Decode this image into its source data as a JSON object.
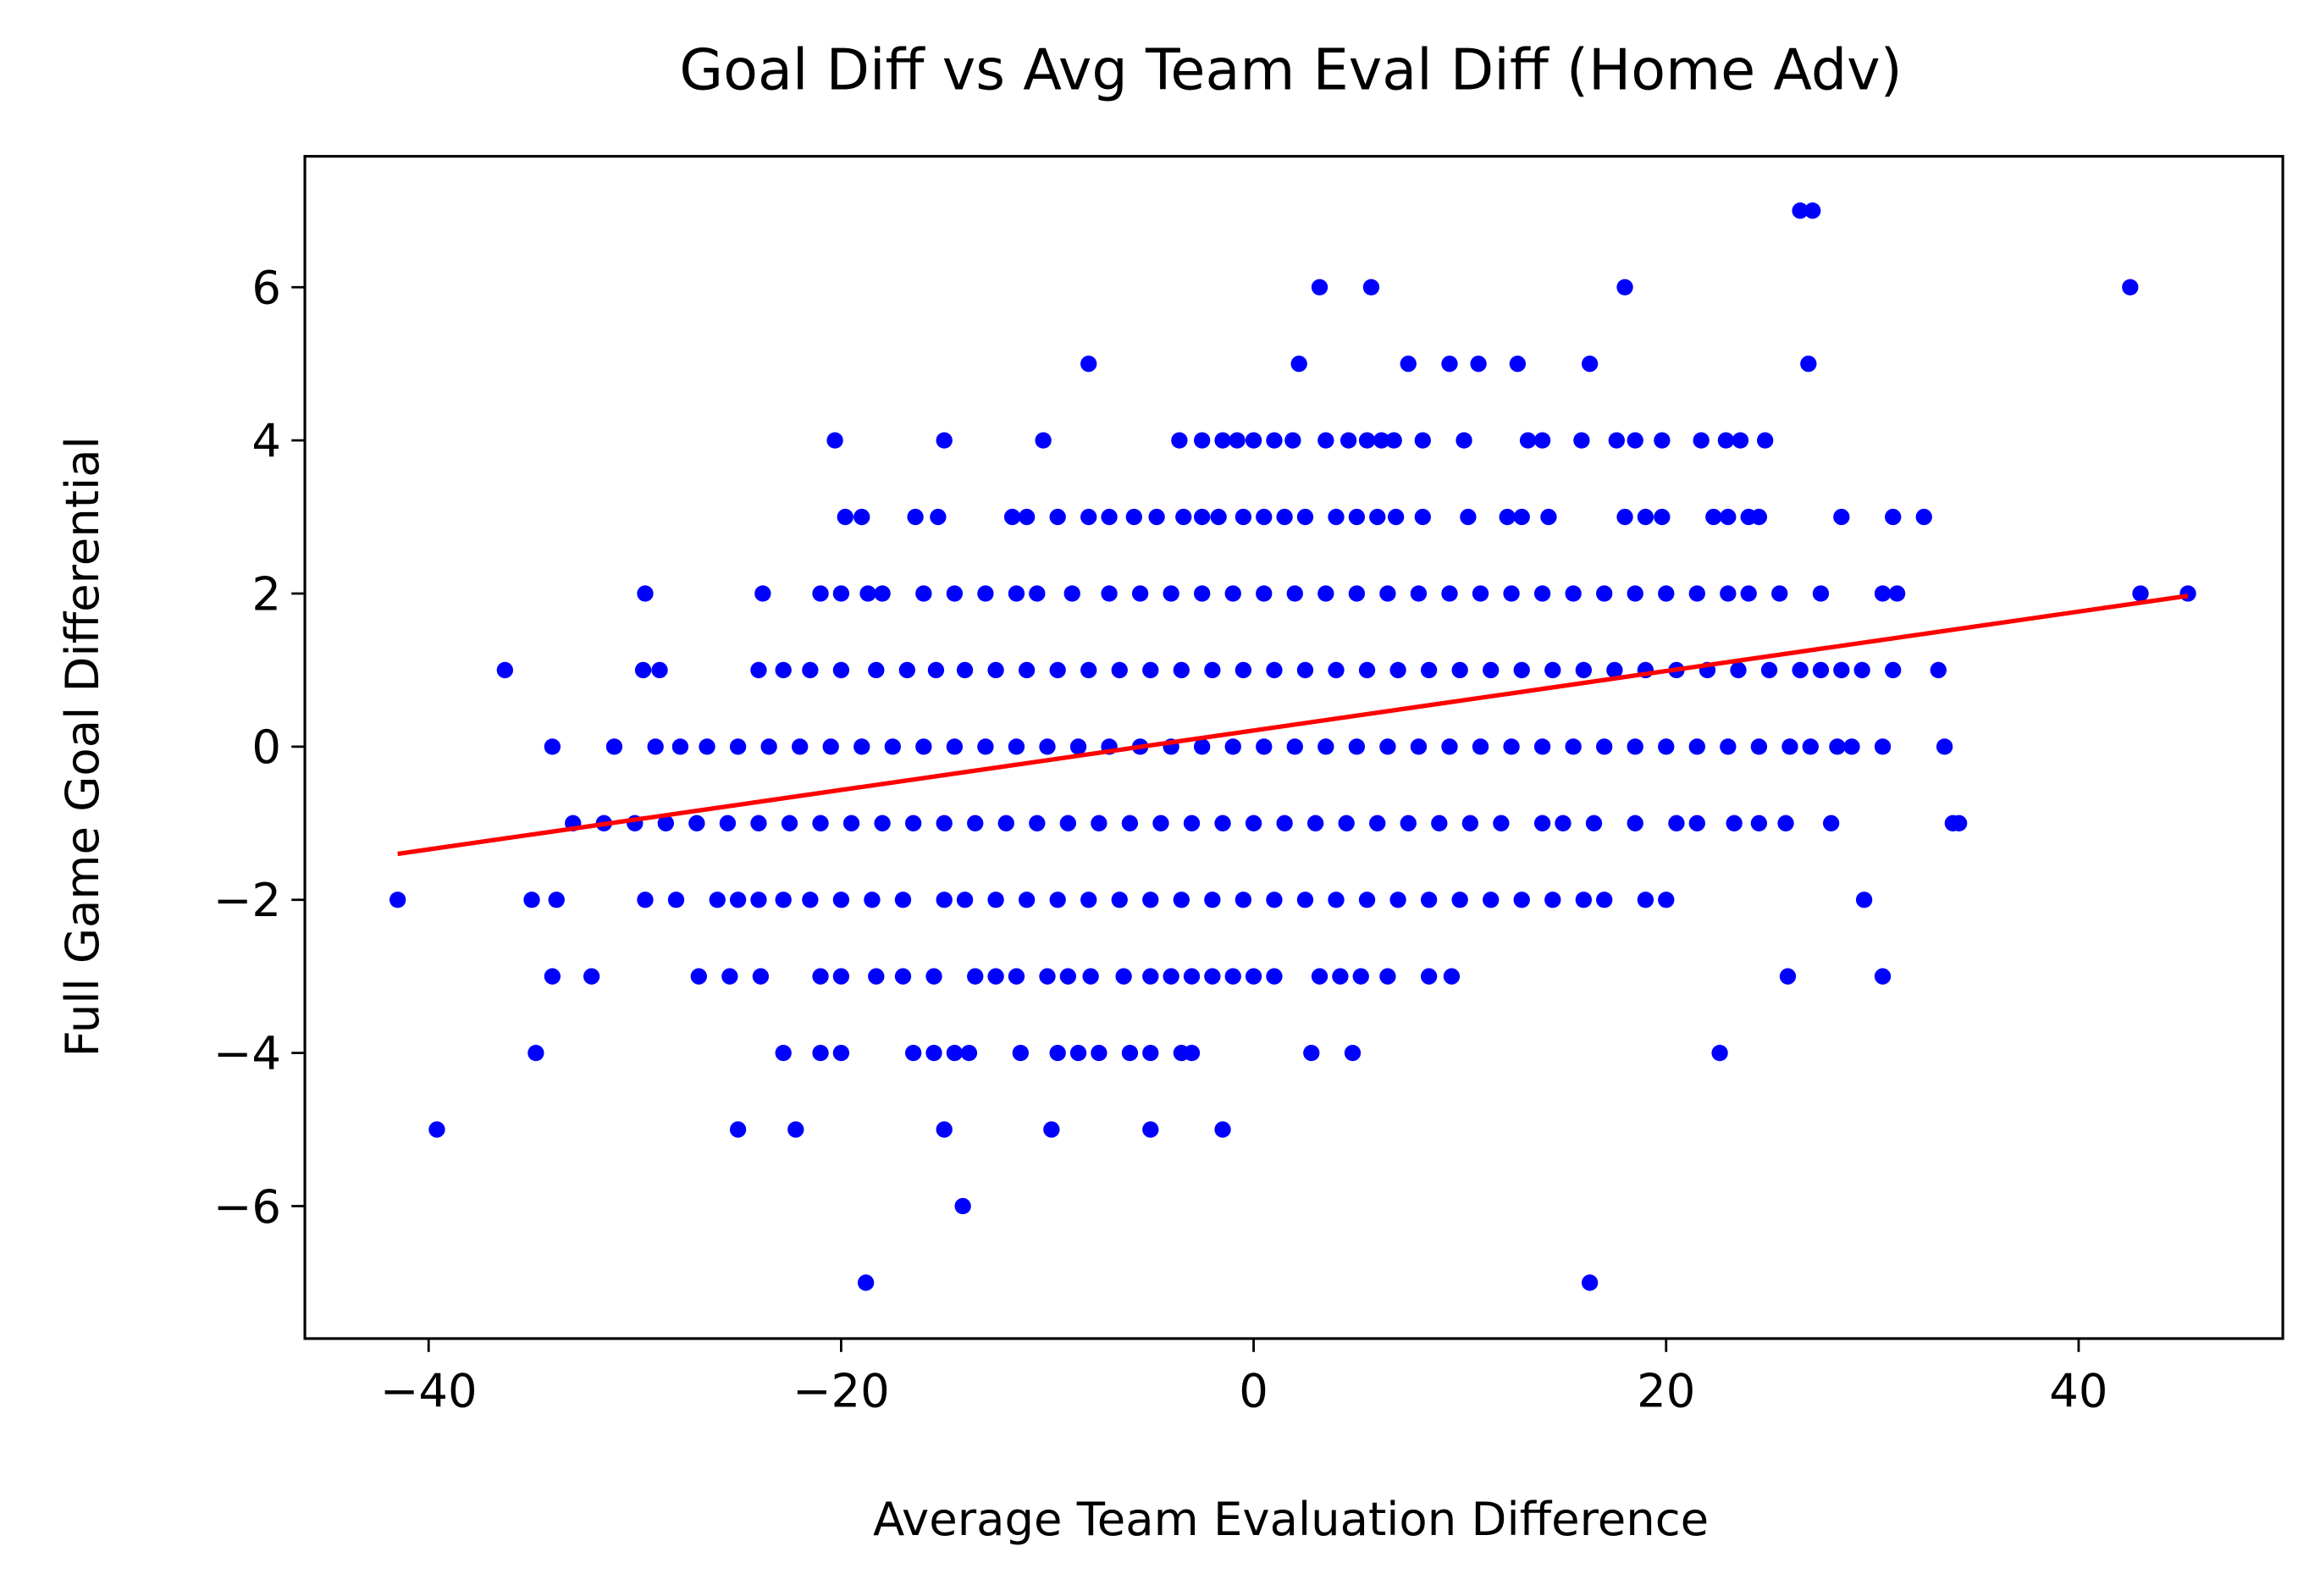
{
  "chart_data": {
    "type": "scatter",
    "title": "Goal Diff vs Avg Team Eval Diff (Home Adv)",
    "x_label": "Average Team Evaluation Difference",
    "y_label": "Full Game Goal Differential",
    "xlim": [
      -46,
      49.9
    ],
    "ylim": [
      -7.73,
      7.71
    ],
    "xticks": [
      {
        "value": -40,
        "label": "−40"
      },
      {
        "value": -20,
        "label": "−20"
      },
      0,
      20,
      40
    ],
    "yticks": [
      {
        "value": -6,
        "label": "−6"
      },
      {
        "value": -4,
        "label": "−4"
      },
      {
        "value": -2,
        "label": "−2"
      },
      0,
      2,
      4,
      6
    ],
    "series": [
      {
        "kind": "points",
        "color": "#0000ff",
        "x": [
          26.5,
          27.1,
          3.2,
          5.7,
          18,
          42.5,
          -8,
          2.2,
          7.5,
          9.5,
          10.9,
          12.8,
          16.3,
          26.9,
          -20.3,
          -15,
          -10.2,
          -3.6,
          -2.5,
          -1.5,
          -0.8,
          0,
          1,
          1.9,
          3.5,
          4.6,
          5.5,
          6.2,
          6.8,
          8.2,
          10.2,
          13.3,
          14,
          15.9,
          17.6,
          18.5,
          19.8,
          21.7,
          22.9,
          23.6,
          24.8,
          -19.8,
          -19,
          -16.4,
          -15.3,
          -11.7,
          -11,
          -9.5,
          -8,
          -7,
          -5.8,
          -4.7,
          -3.4,
          -2.5,
          -1.7,
          -0.5,
          0.5,
          1.5,
          2.5,
          4,
          5,
          6,
          6.9,
          8.2,
          10.4,
          12.3,
          13,
          14.3,
          18,
          19,
          19.8,
          22.3,
          23,
          24,
          24.5,
          28.5,
          31,
          32.5,
          -29.5,
          -23.8,
          -21,
          -20,
          -18.7,
          -18,
          -16,
          -14.5,
          -13,
          -11.5,
          -10.5,
          -8.8,
          -7,
          -5.5,
          -4,
          -2.5,
          -1,
          0.5,
          2,
          3.5,
          5,
          6.5,
          8,
          9.5,
          11,
          12.5,
          14,
          15.5,
          17,
          18.5,
          20,
          21.5,
          23,
          24,
          25.5,
          27.5,
          30.5,
          31.2,
          43,
          45.3,
          -36.3,
          -29.6,
          -28.8,
          -24,
          -22.8,
          -21.5,
          -20,
          -18.3,
          -16.8,
          -15.4,
          -14,
          -12.5,
          -11,
          -9.5,
          -8,
          -6.5,
          -5,
          -3.5,
          -2,
          -0.5,
          1,
          2.5,
          4,
          5.5,
          7,
          8.5,
          10,
          11.5,
          13,
          14.5,
          16,
          17.5,
          19,
          20.5,
          22,
          23.5,
          25,
          26.5,
          27.5,
          28.5,
          29.5,
          31,
          33.2,
          -34,
          -31,
          -29,
          -27.8,
          -26.5,
          -25,
          -23.5,
          -22,
          -20.5,
          -19,
          -17.5,
          -16,
          -14.5,
          -13,
          -11.5,
          -10,
          -8.5,
          -7,
          -5.5,
          -4,
          -2.5,
          -1,
          0.5,
          2,
          3.5,
          5,
          6.5,
          8,
          9.5,
          11,
          12.5,
          14,
          15.5,
          17,
          18.5,
          20,
          21.5,
          23,
          24.5,
          26,
          27,
          28.3,
          29,
          30.5,
          33.5,
          -33,
          -31.5,
          -30,
          -28.5,
          -27,
          -25.5,
          -24,
          -22.5,
          -21,
          -19.5,
          -18,
          -16.5,
          -15,
          -13.5,
          -12,
          -10.5,
          -9,
          -7.5,
          -6,
          -4.5,
          -3,
          -1.5,
          0,
          1.5,
          3,
          4.5,
          6,
          7.5,
          9,
          10.5,
          12,
          14,
          15,
          16.5,
          18.5,
          20.5,
          21.5,
          23.3,
          24.5,
          25.8,
          28,
          33.9,
          34.2,
          -41.5,
          -35,
          -33.8,
          -29.5,
          -28,
          -26,
          -25,
          -24,
          -22.8,
          -21.5,
          -20,
          -18.5,
          -17,
          -15,
          -14,
          -12.5,
          -11,
          -9.5,
          -8,
          -6.5,
          -5,
          -3.5,
          -2,
          -0.5,
          1,
          2.5,
          4,
          5.5,
          7,
          8.5,
          10,
          11.5,
          13,
          14.5,
          16,
          17,
          19,
          20,
          29.6,
          -34,
          -32.1,
          -26.9,
          -25.4,
          -23.9,
          -21,
          -20,
          -18.3,
          -17,
          -15.5,
          -13.5,
          -12.5,
          -11.5,
          -10,
          -9,
          -7.9,
          -6.3,
          -5,
          -4,
          -3,
          -2,
          -1,
          0,
          1,
          3.2,
          4.2,
          5.2,
          6.5,
          8.5,
          9.6,
          25.9,
          30.5,
          -34.8,
          -22.8,
          -21,
          -20,
          -16.5,
          -15.5,
          -14.5,
          -13.8,
          -11.3,
          -9.5,
          -8.5,
          -7.5,
          -6,
          -5,
          -3.5,
          -3,
          2.8,
          4.8,
          22.6,
          -39.6,
          -25,
          -22.2,
          -15,
          -9.8,
          -5,
          -1.5,
          -14.1,
          -18.8,
          16.3
        ],
        "values": [
          7,
          7,
          6,
          6,
          6,
          6,
          5,
          5,
          5,
          5,
          5,
          5,
          5,
          5,
          4,
          4,
          4,
          4,
          4,
          4,
          4,
          4,
          4,
          4,
          4,
          4,
          4,
          4,
          4,
          4,
          4,
          4,
          4,
          4,
          4,
          4,
          4,
          4,
          4,
          4,
          4,
          3,
          3,
          3,
          3,
          3,
          3,
          3,
          3,
          3,
          3,
          3,
          3,
          3,
          3,
          3,
          3,
          3,
          3,
          3,
          3,
          3,
          3,
          3,
          3,
          3,
          3,
          3,
          3,
          3,
          3,
          3,
          3,
          3,
          3,
          3,
          3,
          3,
          2,
          2,
          2,
          2,
          2,
          2,
          2,
          2,
          2,
          2,
          2,
          2,
          2,
          2,
          2,
          2,
          2,
          2,
          2,
          2,
          2,
          2,
          2,
          2,
          2,
          2,
          2,
          2,
          2,
          2,
          2,
          2,
          2,
          2,
          2,
          2,
          2,
          2,
          2,
          2,
          1,
          1,
          1,
          1,
          1,
          1,
          1,
          1,
          1,
          1,
          1,
          1,
          1,
          1,
          1,
          1,
          1,
          1,
          1,
          1,
          1,
          1,
          1,
          1,
          1,
          1,
          1,
          1,
          1,
          1,
          1,
          1,
          1,
          1,
          1,
          1,
          1,
          1,
          1,
          1,
          1,
          1,
          1,
          0,
          0,
          0,
          0,
          0,
          0,
          0,
          0,
          0,
          0,
          0,
          0,
          0,
          0,
          0,
          0,
          0,
          0,
          0,
          0,
          0,
          0,
          0,
          0,
          0,
          0,
          0,
          0,
          0,
          0,
          0,
          0,
          0,
          0,
          0,
          0,
          0,
          0,
          0,
          0,
          0,
          0,
          0,
          0,
          0,
          -1,
          -1,
          -1,
          -1,
          -1,
          -1,
          -1,
          -1,
          -1,
          -1,
          -1,
          -1,
          -1,
          -1,
          -1,
          -1,
          -1,
          -1,
          -1,
          -1,
          -1,
          -1,
          -1,
          -1,
          -1,
          -1,
          -1,
          -1,
          -1,
          -1,
          -1,
          -1,
          -1,
          -1,
          -1,
          -1,
          -1,
          -1,
          -1,
          -1,
          -1,
          -1,
          -1,
          -2,
          -2,
          -2,
          -2,
          -2,
          -2,
          -2,
          -2,
          -2,
          -2,
          -2,
          -2,
          -2,
          -2,
          -2,
          -2,
          -2,
          -2,
          -2,
          -2,
          -2,
          -2,
          -2,
          -2,
          -2,
          -2,
          -2,
          -2,
          -2,
          -2,
          -2,
          -2,
          -2,
          -2,
          -2,
          -2,
          -2,
          -2,
          -2,
          -3,
          -3,
          -3,
          -3,
          -3,
          -3,
          -3,
          -3,
          -3,
          -3,
          -3,
          -3,
          -3,
          -3,
          -3,
          -3,
          -3,
          -3,
          -3,
          -3,
          -3,
          -3,
          -3,
          -3,
          -3,
          -3,
          -3,
          -3,
          -3,
          -3,
          -3,
          -3,
          -4,
          -4,
          -4,
          -4,
          -4,
          -4,
          -4,
          -4,
          -4,
          -4,
          -4,
          -4,
          -4,
          -4,
          -4,
          -4,
          -4,
          -4,
          -4,
          -5,
          -5,
          -5,
          -5,
          -5,
          -5,
          -5,
          -6,
          -7,
          -7
        ]
      },
      {
        "kind": "line",
        "color": "#ff0000",
        "x": [
          -41.5,
          45.3
        ],
        "values": [
          -1.4,
          1.97
        ]
      }
    ]
  }
}
